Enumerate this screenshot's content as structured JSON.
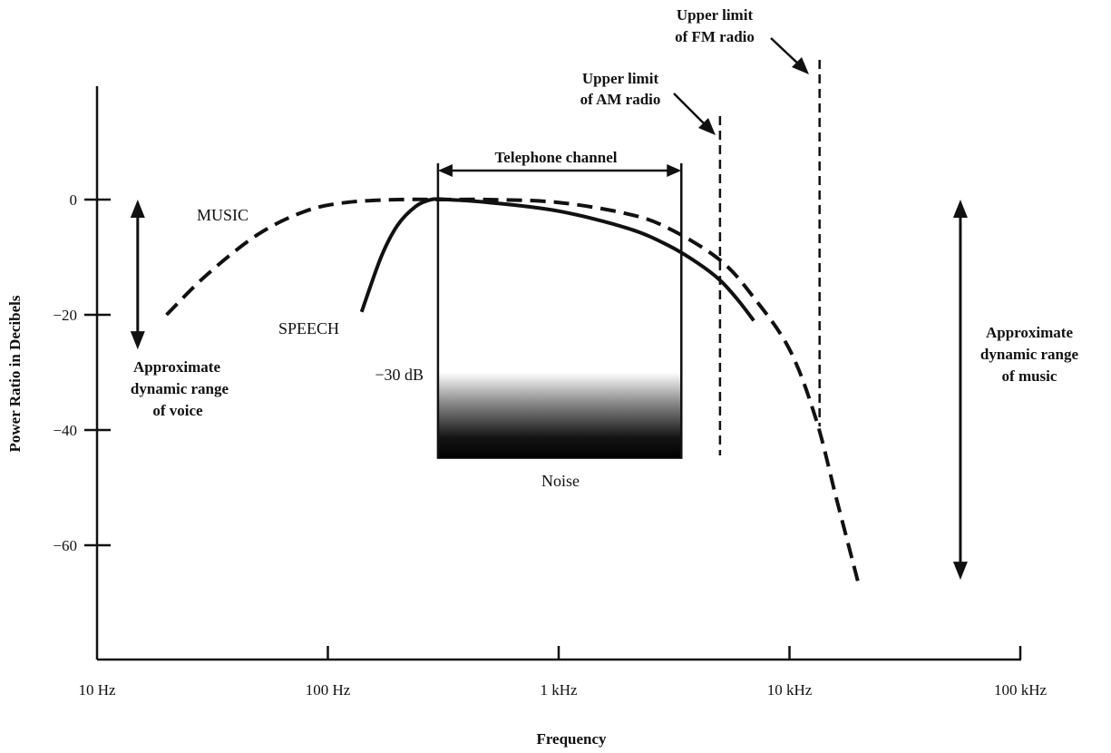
{
  "chart_data": {
    "type": "line",
    "xlabel": "Frequency",
    "ylabel": "Power Ratio in Decibels",
    "x_scale": "log",
    "xlim": [
      10,
      100000
    ],
    "ylim": [
      -80,
      20
    ],
    "x_ticks": [
      {
        "value": 10,
        "label": "10 Hz"
      },
      {
        "value": 100,
        "label": "100 Hz"
      },
      {
        "value": 1000,
        "label": "1 kHz"
      },
      {
        "value": 10000,
        "label": "10 kHz"
      },
      {
        "value": 100000,
        "label": "100 kHz"
      }
    ],
    "y_ticks": [
      {
        "value": 0,
        "label": "0"
      },
      {
        "value": -20,
        "label": "−20"
      },
      {
        "value": -40,
        "label": "−40"
      },
      {
        "value": -60,
        "label": "−60"
      }
    ],
    "series": [
      {
        "name": "MUSIC",
        "style": "dashed",
        "x": [
          20,
          30,
          50,
          80,
          120,
          200,
          300,
          500,
          1000,
          2000,
          3000,
          5000,
          7000,
          10000,
          13000,
          16000,
          20000
        ],
        "y": [
          -20,
          -13,
          -6,
          -2,
          -0.5,
          0,
          0,
          0,
          -0.5,
          -2.5,
          -5,
          -10.5,
          -17,
          -26,
          -38,
          -52,
          -67
        ]
      },
      {
        "name": "SPEECH",
        "style": "solid",
        "x": [
          140,
          170,
          200,
          240,
          280,
          330,
          500,
          1000,
          2000,
          3000,
          4000,
          5000,
          6000,
          7000
        ],
        "y": [
          -19.5,
          -10,
          -4.5,
          -1.2,
          0,
          0,
          -0.5,
          -2,
          -5,
          -8,
          -11,
          -14,
          -17.5,
          -21
        ]
      }
    ],
    "annotations": {
      "music_label": "MUSIC",
      "speech_label": "SPEECH",
      "telephone_channel": {
        "label": "Telephone channel",
        "x_range": [
          300,
          3400
        ],
        "y_bottom": -45
      },
      "noise": {
        "label": "Noise",
        "level_label": "−30 dB",
        "from_db": -30,
        "to_db": -45
      },
      "am_limit": {
        "lines": [
          "Upper limit",
          "of AM radio"
        ],
        "x": 5000
      },
      "fm_limit": {
        "lines": [
          "Upper limit",
          "of FM radio"
        ],
        "x": 13500
      },
      "voice_range": {
        "lines": [
          "Approximate",
          "dynamic range",
          "of voice"
        ],
        "x": 15,
        "from_db": 0,
        "to_db": -26
      },
      "music_range": {
        "lines": [
          "Approximate",
          "dynamic range",
          "of music"
        ],
        "x": 55000,
        "from_db": 0,
        "to_db": -66
      }
    }
  }
}
